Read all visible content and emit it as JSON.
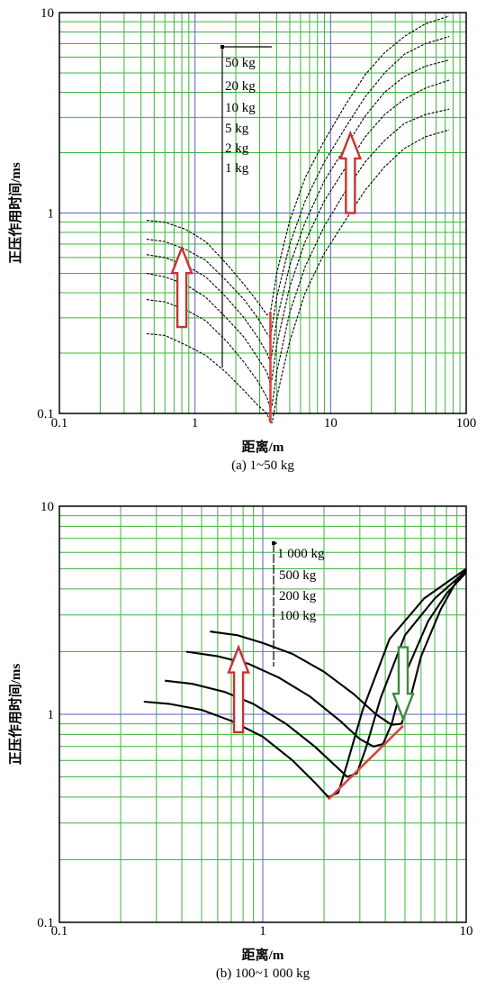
{
  "colors": {
    "grid_major": "#5a5ad2",
    "grid_minor": "#3cb43c",
    "curve": "#000000",
    "arrow_red": "#c83232",
    "arrow_green": "#3c8c3c",
    "guide": "#e04040"
  },
  "chart_data": [
    {
      "type": "line",
      "title": "",
      "caption": "(a)  1~50 kg",
      "xlabel": "距离/m",
      "ylabel": "正压作用时间/ms",
      "xscale": "log",
      "yscale": "log",
      "xlim": [
        0.1,
        100
      ],
      "ylim": [
        0.1,
        10
      ],
      "xticks": [
        {
          "value": 0.1,
          "label": "0.1"
        },
        {
          "value": 1,
          "label": "1"
        },
        {
          "value": 10,
          "label": "10"
        },
        {
          "value": 100,
          "label": "100"
        }
      ],
      "yticks": [
        {
          "value": 0.1,
          "label": "0.1"
        },
        {
          "value": 1,
          "label": "1"
        },
        {
          "value": 10,
          "label": "10"
        }
      ],
      "grid": true,
      "legend_position": "top-center",
      "legend": [
        "50 kg",
        "20 kg",
        "10 kg",
        "5 kg",
        "2 kg",
        "1 kg"
      ],
      "series": [
        {
          "x": [
            0.44,
            0.6,
            0.85,
            1.2,
            1.7,
            2.3,
            2.9,
            3.4,
            3.6,
            3.7,
            4.0,
            5.0,
            6.5,
            9.0,
            13,
            18,
            25,
            35,
            50,
            75
          ],
          "y": [
            0.92,
            0.9,
            0.83,
            0.72,
            0.56,
            0.44,
            0.36,
            0.31,
            0.32,
            0.36,
            0.5,
            0.92,
            1.5,
            2.3,
            3.5,
            4.9,
            6.3,
            7.6,
            8.8,
            9.6
          ]
        },
        {
          "x": [
            0.44,
            0.6,
            0.85,
            1.2,
            1.7,
            2.3,
            2.9,
            3.4,
            3.6,
            3.7,
            4.0,
            5.0,
            6.5,
            9.0,
            13,
            18,
            25,
            35,
            50,
            75
          ],
          "y": [
            0.74,
            0.72,
            0.66,
            0.58,
            0.46,
            0.37,
            0.3,
            0.25,
            0.24,
            0.27,
            0.38,
            0.7,
            1.15,
            1.8,
            2.7,
            3.8,
            5.0,
            6.2,
            7.0,
            7.6
          ]
        },
        {
          "x": [
            0.44,
            0.6,
            0.85,
            1.2,
            1.7,
            2.3,
            2.9,
            3.4,
            3.6,
            3.7,
            4.0,
            5.0,
            6.5,
            9.0,
            13,
            18,
            25,
            35,
            50,
            75
          ],
          "y": [
            0.62,
            0.6,
            0.55,
            0.48,
            0.38,
            0.3,
            0.24,
            0.2,
            0.18,
            0.2,
            0.29,
            0.55,
            0.9,
            1.45,
            2.15,
            3.05,
            4.0,
            4.8,
            5.4,
            5.8
          ]
        },
        {
          "x": [
            0.44,
            0.6,
            0.85,
            1.2,
            1.7,
            2.3,
            2.9,
            3.4,
            3.6,
            3.7,
            4.0,
            5.0,
            6.5,
            9.0,
            13,
            18,
            25,
            35,
            50,
            75
          ],
          "y": [
            0.5,
            0.48,
            0.44,
            0.38,
            0.3,
            0.24,
            0.19,
            0.16,
            0.14,
            0.15,
            0.22,
            0.43,
            0.72,
            1.15,
            1.7,
            2.4,
            3.1,
            3.7,
            4.2,
            4.6
          ]
        },
        {
          "x": [
            0.44,
            0.6,
            0.85,
            1.2,
            1.7,
            2.3,
            2.9,
            3.4,
            3.6,
            3.7,
            4.0,
            5.0,
            6.5,
            9.0,
            13,
            18,
            25,
            35,
            50,
            75
          ],
          "y": [
            0.37,
            0.36,
            0.33,
            0.29,
            0.23,
            0.18,
            0.145,
            0.12,
            0.105,
            0.11,
            0.16,
            0.32,
            0.54,
            0.86,
            1.3,
            1.8,
            2.3,
            2.8,
            3.1,
            3.3
          ]
        },
        {
          "x": [
            0.44,
            0.6,
            0.85,
            1.2,
            1.7,
            2.3,
            2.9,
            3.4,
            3.6,
            3.7,
            4.0,
            5.0,
            6.5,
            9.0,
            13,
            18,
            25,
            35,
            50,
            75
          ],
          "y": [
            0.25,
            0.245,
            0.22,
            0.195,
            0.16,
            0.13,
            0.11,
            0.1,
            0.09,
            0.09,
            0.12,
            0.23,
            0.4,
            0.63,
            0.93,
            1.3,
            1.7,
            2.1,
            2.4,
            2.6
          ]
        }
      ],
      "guide_line": {
        "x": [
          3.6,
          3.6
        ],
        "y": [
          0.32,
          0.09
        ]
      },
      "arrows": [
        {
          "x": 0.8,
          "y_from": 0.27,
          "y_to": 0.67,
          "color": "red"
        },
        {
          "x": 14,
          "y_from": 1.0,
          "y_to": 2.5,
          "color": "red"
        }
      ],
      "bracket": {
        "x": 1.55,
        "y_from": 0.17,
        "y_to": 6.5
      }
    },
    {
      "type": "line",
      "title": "",
      "caption": "(b)  100~1 000 kg",
      "xlabel": "距离/m",
      "ylabel": "正压作用时间/ms",
      "xscale": "log",
      "yscale": "log",
      "xlim": [
        0.1,
        10
      ],
      "ylim": [
        0.1,
        10
      ],
      "xticks": [
        {
          "value": 0.1,
          "label": "0.1"
        },
        {
          "value": 1,
          "label": "1"
        },
        {
          "value": 10,
          "label": "10"
        }
      ],
      "yticks": [
        {
          "value": 0.1,
          "label": "0.1"
        },
        {
          "value": 1,
          "label": "1"
        },
        {
          "value": 10,
          "label": "10"
        }
      ],
      "grid": true,
      "legend_position": "top-center",
      "legend": [
        "1 000 kg",
        "500 kg",
        "200 kg",
        "100 kg"
      ],
      "series": [
        {
          "x": [
            0.55,
            0.75,
            1.0,
            1.4,
            2.0,
            2.8,
            3.6,
            4.3,
            4.8,
            5.2,
            6.0,
            7.5,
            9.0,
            10.0
          ],
          "y": [
            2.5,
            2.4,
            2.2,
            1.95,
            1.6,
            1.25,
            1.0,
            0.89,
            0.9,
            1.1,
            1.9,
            3.2,
            4.4,
            5.0
          ]
        },
        {
          "x": [
            0.42,
            0.6,
            0.85,
            1.2,
            1.7,
            2.4,
            3.0,
            3.5,
            3.9,
            4.3,
            5.0,
            6.5,
            8.0,
            10.0
          ],
          "y": [
            2.0,
            1.9,
            1.75,
            1.5,
            1.22,
            0.93,
            0.76,
            0.7,
            0.72,
            0.9,
            1.55,
            2.8,
            3.8,
            4.8
          ]
        },
        {
          "x": [
            0.33,
            0.45,
            0.65,
            0.9,
            1.3,
            1.8,
            2.3,
            2.6,
            2.9,
            3.2,
            3.8,
            5.0,
            7.0,
            10.0
          ],
          "y": [
            1.45,
            1.4,
            1.28,
            1.12,
            0.9,
            0.7,
            0.56,
            0.5,
            0.52,
            0.68,
            1.2,
            2.4,
            3.6,
            4.9
          ]
        },
        {
          "x": [
            0.26,
            0.35,
            0.5,
            0.7,
            1.0,
            1.4,
            1.8,
            2.1,
            2.35,
            2.6,
            3.1,
            4.2,
            6.2,
            10.0
          ],
          "y": [
            1.15,
            1.12,
            1.05,
            0.93,
            0.78,
            0.6,
            0.47,
            0.4,
            0.42,
            0.58,
            1.05,
            2.3,
            3.6,
            5.0
          ]
        }
      ],
      "guide_line": {
        "x": [
          2.1,
          4.9
        ],
        "y": [
          0.39,
          0.88
        ]
      },
      "arrows": [
        {
          "x": 0.76,
          "y_from": 0.82,
          "y_to": 2.1,
          "color": "red"
        },
        {
          "x": 4.9,
          "y_from": 2.1,
          "y_to": 0.95,
          "color": "green"
        }
      ],
      "bracket": {
        "x": 1.1,
        "y_from": 0.72,
        "y_to": 6.3
      }
    }
  ]
}
